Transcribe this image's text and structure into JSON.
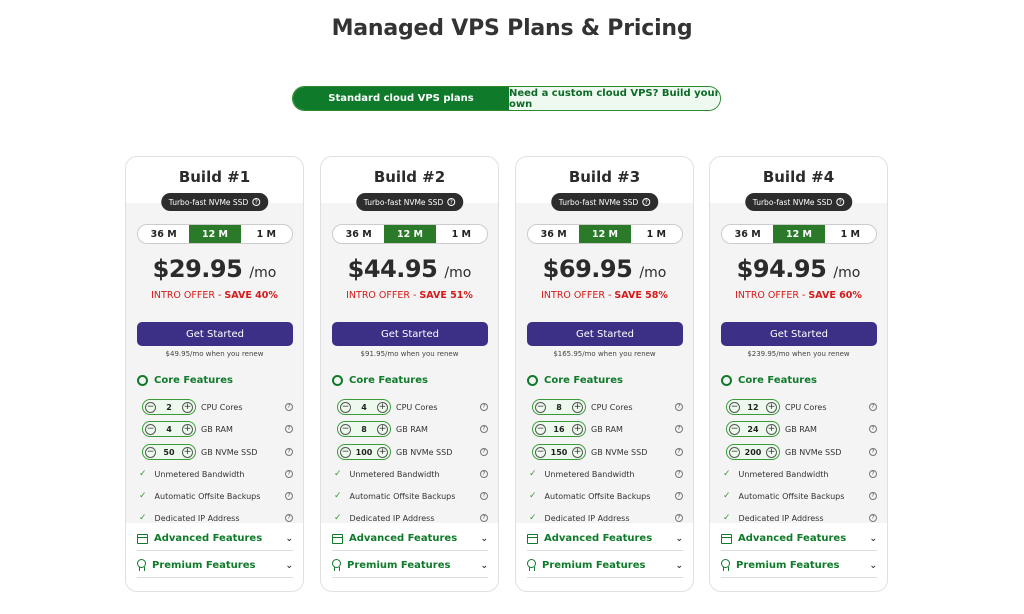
{
  "page": {
    "title": "Managed VPS Plans & Pricing"
  },
  "toggle": {
    "standard": "Standard cloud VPS plans",
    "custom": "Need a custom cloud VPS? Build your own"
  },
  "labels": {
    "ssd_badge": "Turbo-fast NVMe SSD",
    "terms": [
      "36 M",
      "12 M",
      "1 M"
    ],
    "selected_term": "12 M",
    "per_month": "/mo",
    "intro_offer": "INTRO OFFER - ",
    "cta": "Get Started",
    "core_features": "Core Features",
    "advanced_features": "Advanced Features",
    "premium_features": "Premium Features",
    "cpu": "CPU Cores",
    "ram": "GB RAM",
    "ssd": "GB NVMe SSD",
    "bandwidth": "Unmetered Bandwidth",
    "backups": "Automatic Offsite Backups",
    "ip": "Dedicated IP Address"
  },
  "plans": [
    {
      "name": "Build #1",
      "price": "$29.95",
      "save": "SAVE 40%",
      "renew": "$49.95/mo when you renew",
      "cpu": "2",
      "ram": "4",
      "ssd": "50"
    },
    {
      "name": "Build #2",
      "price": "$44.95",
      "save": "SAVE 51%",
      "renew": "$91.95/mo when you renew",
      "cpu": "4",
      "ram": "8",
      "ssd": "100"
    },
    {
      "name": "Build #3",
      "price": "$69.95",
      "save": "SAVE 58%",
      "renew": "$165.95/mo when you renew",
      "cpu": "8",
      "ram": "16",
      "ssd": "150"
    },
    {
      "name": "Build #4",
      "price": "$94.95",
      "save": "SAVE 60%",
      "renew": "$239.95/mo when you renew",
      "cpu": "12",
      "ram": "24",
      "ssd": "200"
    }
  ],
  "colors": {
    "brand_green": "#0f7a2a",
    "cta_purple": "#3b2f86",
    "offer_red": "#d51a1a"
  }
}
